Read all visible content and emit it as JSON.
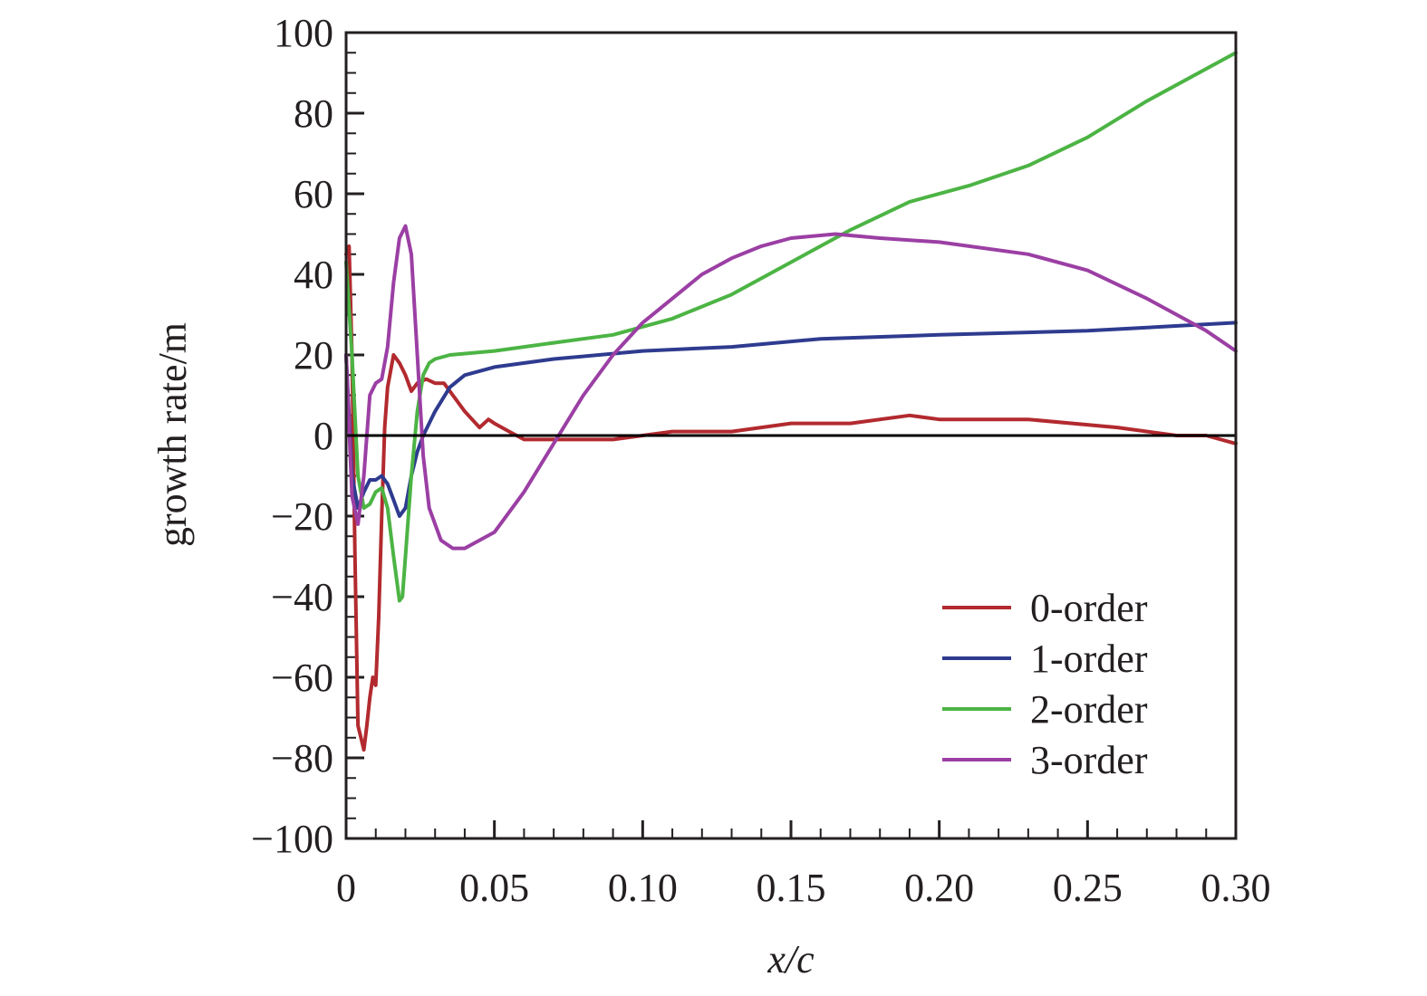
{
  "chart_data": {
    "type": "line",
    "title": "",
    "xlabel": "x/c",
    "ylabel": "growth rate/m",
    "xlim": [
      0,
      0.3
    ],
    "ylim": [
      -100,
      100
    ],
    "x_ticks": [
      "0",
      "0.05",
      "0.10",
      "0.15",
      "0.20",
      "0.25",
      "0.30"
    ],
    "y_ticks": [
      "100",
      "80",
      "60",
      "40",
      "20",
      "0",
      "−20",
      "−40",
      "−60",
      "−80",
      "−100"
    ],
    "grid": false,
    "zero_line": true,
    "legend_position": "bottom-right",
    "series": [
      {
        "name": "0-order",
        "color": "#b22a2f",
        "points": [
          [
            0.0,
            45
          ],
          [
            0.001,
            47
          ],
          [
            0.002,
            20
          ],
          [
            0.003,
            -30
          ],
          [
            0.004,
            -72
          ],
          [
            0.005,
            -75
          ],
          [
            0.006,
            -78
          ],
          [
            0.007,
            -72
          ],
          [
            0.008,
            -65
          ],
          [
            0.009,
            -60
          ],
          [
            0.01,
            -62
          ],
          [
            0.011,
            -45
          ],
          [
            0.012,
            -20
          ],
          [
            0.013,
            2
          ],
          [
            0.014,
            12
          ],
          [
            0.016,
            20
          ],
          [
            0.018,
            18
          ],
          [
            0.02,
            15
          ],
          [
            0.022,
            11
          ],
          [
            0.024,
            13
          ],
          [
            0.027,
            14
          ],
          [
            0.03,
            13
          ],
          [
            0.033,
            13
          ],
          [
            0.036,
            10
          ],
          [
            0.04,
            6
          ],
          [
            0.045,
            2
          ],
          [
            0.048,
            4
          ],
          [
            0.05,
            3
          ],
          [
            0.055,
            1
          ],
          [
            0.06,
            -1
          ],
          [
            0.07,
            -1
          ],
          [
            0.08,
            -1
          ],
          [
            0.09,
            -1
          ],
          [
            0.1,
            0
          ],
          [
            0.11,
            1
          ],
          [
            0.13,
            1
          ],
          [
            0.15,
            3
          ],
          [
            0.17,
            3
          ],
          [
            0.19,
            5
          ],
          [
            0.2,
            4
          ],
          [
            0.23,
            4
          ],
          [
            0.26,
            2
          ],
          [
            0.28,
            0
          ],
          [
            0.29,
            0
          ],
          [
            0.3,
            -2
          ]
        ]
      },
      {
        "name": "1-order",
        "color": "#2e3b8f",
        "points": [
          [
            0.0,
            20
          ],
          [
            0.002,
            -10
          ],
          [
            0.004,
            -18
          ],
          [
            0.006,
            -14
          ],
          [
            0.008,
            -11
          ],
          [
            0.01,
            -11
          ],
          [
            0.012,
            -10
          ],
          [
            0.014,
            -12
          ],
          [
            0.016,
            -16
          ],
          [
            0.018,
            -20
          ],
          [
            0.02,
            -18
          ],
          [
            0.022,
            -10
          ],
          [
            0.024,
            -4
          ],
          [
            0.026,
            0
          ],
          [
            0.03,
            6
          ],
          [
            0.035,
            12
          ],
          [
            0.04,
            15
          ],
          [
            0.05,
            17
          ],
          [
            0.07,
            19
          ],
          [
            0.1,
            21
          ],
          [
            0.13,
            22
          ],
          [
            0.16,
            24
          ],
          [
            0.2,
            25
          ],
          [
            0.25,
            26
          ],
          [
            0.3,
            28
          ]
        ]
      },
      {
        "name": "2-order",
        "color": "#4cb444",
        "points": [
          [
            0.0,
            43
          ],
          [
            0.002,
            20
          ],
          [
            0.004,
            -10
          ],
          [
            0.006,
            -18
          ],
          [
            0.008,
            -17
          ],
          [
            0.01,
            -14
          ],
          [
            0.012,
            -13
          ],
          [
            0.014,
            -18
          ],
          [
            0.016,
            -30
          ],
          [
            0.018,
            -41
          ],
          [
            0.019,
            -40
          ],
          [
            0.02,
            -30
          ],
          [
            0.022,
            -10
          ],
          [
            0.024,
            6
          ],
          [
            0.026,
            15
          ],
          [
            0.028,
            18
          ],
          [
            0.03,
            19
          ],
          [
            0.035,
            20
          ],
          [
            0.05,
            21
          ],
          [
            0.07,
            23
          ],
          [
            0.09,
            25
          ],
          [
            0.11,
            29
          ],
          [
            0.13,
            35
          ],
          [
            0.15,
            43
          ],
          [
            0.17,
            51
          ],
          [
            0.19,
            58
          ],
          [
            0.21,
            62
          ],
          [
            0.23,
            67
          ],
          [
            0.25,
            74
          ],
          [
            0.27,
            83
          ],
          [
            0.3,
            95
          ]
        ]
      },
      {
        "name": "3-order",
        "color": "#9b3fa4",
        "points": [
          [
            0.0,
            20
          ],
          [
            0.002,
            -15
          ],
          [
            0.004,
            -22
          ],
          [
            0.006,
            -10
          ],
          [
            0.008,
            10
          ],
          [
            0.01,
            13
          ],
          [
            0.012,
            14
          ],
          [
            0.014,
            22
          ],
          [
            0.016,
            38
          ],
          [
            0.018,
            49
          ],
          [
            0.02,
            52
          ],
          [
            0.022,
            45
          ],
          [
            0.024,
            20
          ],
          [
            0.026,
            -5
          ],
          [
            0.028,
            -18
          ],
          [
            0.032,
            -26
          ],
          [
            0.036,
            -28
          ],
          [
            0.04,
            -28
          ],
          [
            0.05,
            -24
          ],
          [
            0.06,
            -14
          ],
          [
            0.07,
            -2
          ],
          [
            0.08,
            10
          ],
          [
            0.09,
            20
          ],
          [
            0.1,
            28
          ],
          [
            0.11,
            34
          ],
          [
            0.12,
            40
          ],
          [
            0.13,
            44
          ],
          [
            0.14,
            47
          ],
          [
            0.15,
            49
          ],
          [
            0.165,
            50
          ],
          [
            0.18,
            49
          ],
          [
            0.2,
            48
          ],
          [
            0.23,
            45
          ],
          [
            0.25,
            41
          ],
          [
            0.27,
            34
          ],
          [
            0.29,
            26
          ],
          [
            0.3,
            21
          ]
        ]
      }
    ]
  }
}
